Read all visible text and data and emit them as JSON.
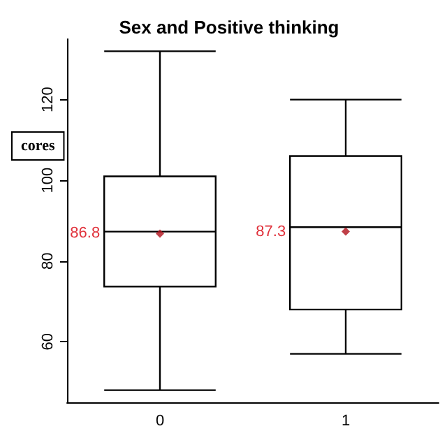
{
  "chart_data": {
    "type": "box",
    "title": "Sex and Positive thinking",
    "categories": [
      "0",
      "1"
    ],
    "boxes": [
      {
        "low": 48,
        "q1": 73.7,
        "median": 87.3,
        "q3": 101,
        "high": 132,
        "mean": 86.8
      },
      {
        "low": 57,
        "q1": 68,
        "median": 88.4,
        "q3": 106,
        "high": 120,
        "mean": 87.3
      }
    ],
    "ylim": [
      45,
      135
    ],
    "yticks": [
      60,
      80,
      100,
      120
    ],
    "grid": false,
    "annotations": [
      "cores",
      "86.8",
      "87.3"
    ]
  }
}
